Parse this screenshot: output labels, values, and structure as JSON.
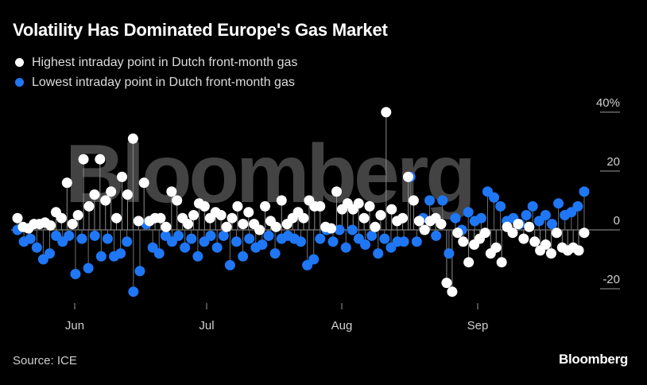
{
  "header": {
    "title": "Volatility Has Dominated Europe's Gas Market"
  },
  "legend": {
    "items": [
      {
        "label": "Highest intraday point in Dutch front-month gas",
        "color": "#ffffff"
      },
      {
        "label": "Lowest intraday point in Dutch front-month gas",
        "color": "#1f77f5"
      }
    ]
  },
  "watermark": "Bloomberg",
  "footer": {
    "source": "Source: ICE",
    "brand": "Bloomberg"
  },
  "chart_data": {
    "type": "scatter",
    "title": "Volatility Has Dominated Europe's Gas Market",
    "xlabel": "",
    "ylabel": "",
    "x_tick_labels": [
      "Jun",
      "Jul",
      "Aug",
      "Sep"
    ],
    "y_tick_labels": [
      "40%",
      "20",
      "0",
      "-20"
    ],
    "y_ticks": [
      40,
      20,
      0,
      -20
    ],
    "ylim": [
      -26,
      42
    ],
    "grid": false,
    "legend_position": "top-left",
    "series": [
      {
        "name": "Highest intraday point in Dutch front-month gas",
        "color": "#ffffff",
        "values": [
          4,
          1,
          0.5,
          2,
          2,
          2.5,
          1.5,
          6,
          4,
          16,
          2,
          5,
          24,
          8,
          12,
          24,
          10,
          13,
          4,
          18,
          12,
          31,
          3,
          16,
          3,
          4,
          4,
          1,
          13,
          10,
          4,
          2,
          5,
          9,
          8,
          4,
          6,
          5,
          1,
          4,
          8,
          2,
          6,
          2,
          0,
          8,
          3,
          1,
          10,
          2,
          4,
          6,
          4,
          10,
          8,
          8,
          1,
          0.5,
          13,
          7,
          9,
          7,
          9,
          4,
          8,
          1,
          5,
          40,
          7,
          3,
          4,
          18,
          10,
          3,
          0,
          3,
          4,
          2,
          -18,
          -21,
          -1,
          -4,
          -11,
          -5,
          -3,
          -1,
          -8,
          -6,
          -11,
          1,
          -1,
          2,
          -3,
          1,
          -4,
          -7,
          -5,
          -8,
          -1,
          -6,
          -7,
          -6,
          -7,
          -1
        ],
        "x_index_start": 0
      },
      {
        "name": "Lowest intraday point in Dutch front-month gas",
        "color": "#1f77f5",
        "values": [
          0,
          -4,
          -3,
          -6,
          -10,
          -8,
          -2,
          -4,
          -2,
          -15,
          -3,
          -13,
          -2,
          -9,
          -3,
          -9,
          -8,
          -4,
          -21,
          -14,
          2,
          -6,
          -8,
          -2,
          -4,
          -2,
          -6,
          -3,
          -9,
          -4,
          -2,
          -6,
          -2,
          -12,
          -4,
          -9,
          -3,
          -6,
          -5,
          -2,
          -8,
          -3,
          -2,
          -3,
          -4,
          -12,
          -10,
          -3,
          0,
          -4,
          0,
          -6,
          0,
          -3,
          -5,
          -2,
          -8,
          -3,
          -6,
          -4,
          -4,
          18,
          -4,
          4,
          10,
          -2,
          10,
          -8,
          4,
          0,
          6,
          3,
          4,
          13,
          11,
          8,
          3,
          4,
          2,
          5,
          8,
          3,
          5,
          2,
          9,
          5,
          6,
          8,
          13
        ],
        "x_index_start": 0
      }
    ]
  }
}
